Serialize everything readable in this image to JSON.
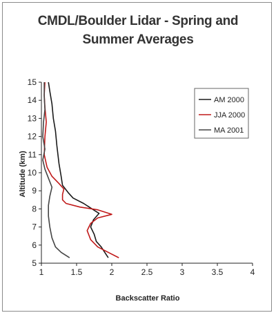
{
  "chart_data": {
    "type": "line",
    "title_line1": "CMDL/Boulder Lidar - Spring and",
    "title_line2": "Summer Averages",
    "xlabel": "Backscatter Ratio",
    "ylabel": "Altitude (km)",
    "xlim": [
      1,
      4
    ],
    "ylim": [
      5,
      15
    ],
    "x_ticks": [
      1,
      1.5,
      2,
      2.5,
      3,
      3.5,
      4
    ],
    "x_tick_labels": [
      "1",
      "1.5",
      "2",
      "2.5",
      "3",
      "3.5",
      "4"
    ],
    "y_ticks": [
      5,
      6,
      7,
      8,
      9,
      10,
      11,
      12,
      13,
      14,
      15
    ],
    "y_tick_labels": [
      "5",
      "6",
      "7",
      "8",
      "9",
      "10",
      "11",
      "12",
      "13",
      "14",
      "15"
    ],
    "grid": false,
    "legend_position": "top-right",
    "series": [
      {
        "name": "AM 2000",
        "color": "#1a1a1a",
        "points": [
          [
            1.95,
            5.3
          ],
          [
            1.9,
            5.6
          ],
          [
            1.85,
            5.9
          ],
          [
            1.78,
            6.2
          ],
          [
            1.75,
            6.6
          ],
          [
            1.7,
            7.0
          ],
          [
            1.74,
            7.4
          ],
          [
            1.82,
            7.75
          ],
          [
            1.72,
            8.0
          ],
          [
            1.6,
            8.3
          ],
          [
            1.45,
            8.6
          ],
          [
            1.38,
            8.9
          ],
          [
            1.3,
            9.3
          ],
          [
            1.28,
            9.8
          ],
          [
            1.25,
            10.5
          ],
          [
            1.22,
            11.5
          ],
          [
            1.2,
            12.3
          ],
          [
            1.17,
            13.0
          ],
          [
            1.15,
            13.8
          ],
          [
            1.12,
            14.5
          ],
          [
            1.1,
            15.0
          ]
        ]
      },
      {
        "name": "JJA 2000",
        "color": "#c01818",
        "points": [
          [
            2.1,
            5.3
          ],
          [
            1.95,
            5.6
          ],
          [
            1.8,
            5.9
          ],
          [
            1.7,
            6.3
          ],
          [
            1.65,
            6.8
          ],
          [
            1.7,
            7.2
          ],
          [
            1.8,
            7.5
          ],
          [
            2.0,
            7.7
          ],
          [
            1.8,
            7.95
          ],
          [
            1.55,
            8.1
          ],
          [
            1.35,
            8.3
          ],
          [
            1.3,
            8.5
          ],
          [
            1.3,
            8.8
          ],
          [
            1.32,
            9.1
          ],
          [
            1.25,
            9.4
          ],
          [
            1.15,
            9.8
          ],
          [
            1.08,
            10.3
          ],
          [
            1.04,
            11.0
          ],
          [
            1.05,
            12.0
          ],
          [
            1.07,
            12.8
          ],
          [
            1.05,
            13.6
          ],
          [
            1.04,
            14.3
          ],
          [
            1.05,
            15.0
          ]
        ]
      },
      {
        "name": "MA 2001",
        "color": "#444444",
        "points": [
          [
            1.4,
            5.3
          ],
          [
            1.28,
            5.6
          ],
          [
            1.2,
            5.9
          ],
          [
            1.15,
            6.4
          ],
          [
            1.12,
            7.0
          ],
          [
            1.1,
            7.6
          ],
          [
            1.1,
            8.2
          ],
          [
            1.12,
            8.7
          ],
          [
            1.15,
            9.2
          ],
          [
            1.1,
            9.7
          ],
          [
            1.05,
            10.2
          ],
          [
            1.02,
            10.7
          ],
          [
            1.05,
            11.3
          ],
          [
            1.02,
            12.0
          ],
          [
            1.03,
            12.8
          ],
          [
            1.05,
            13.5
          ],
          [
            1.04,
            14.2
          ],
          [
            1.04,
            15.0
          ]
        ]
      }
    ]
  }
}
